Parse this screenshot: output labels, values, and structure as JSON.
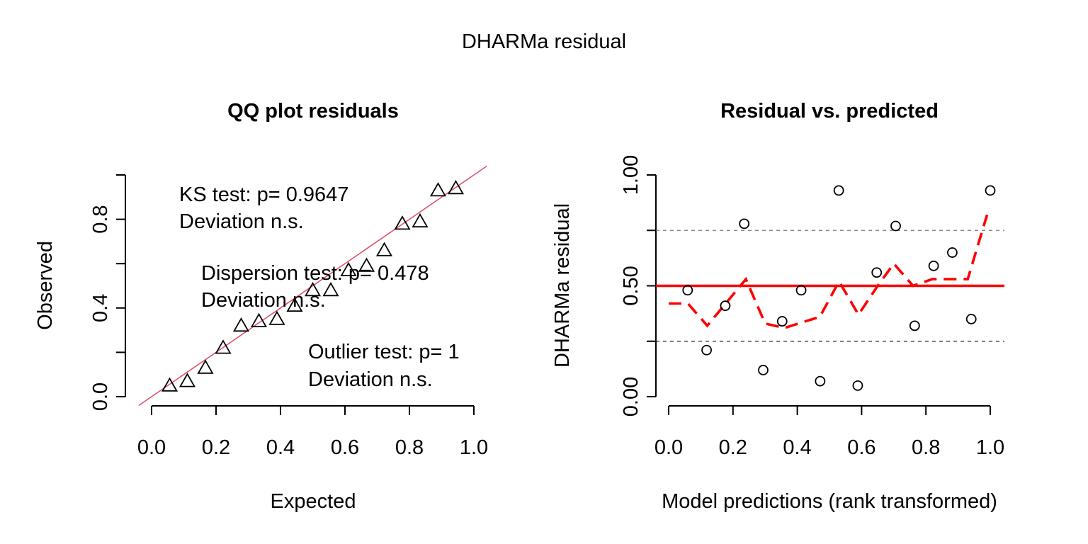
{
  "figure_title": "DHARMa residual",
  "colors": {
    "ref_line": "#DF536B",
    "quantile": "#FF0000",
    "marker": "#000000",
    "guide": "#777777"
  },
  "chart_data": [
    {
      "type": "scatter",
      "title": "QQ plot residuals",
      "xlabel": "Expected",
      "ylabel": "Observed",
      "xlim": [
        0.0,
        1.0
      ],
      "ylim": [
        0.0,
        1.0
      ],
      "xticks": [
        "0.0",
        "0.2",
        "0.4",
        "0.6",
        "0.8",
        "1.0"
      ],
      "yticks": [
        "0.0",
        "0.4",
        "0.8"
      ],
      "marker": "triangle",
      "x": [
        0.056,
        0.111,
        0.167,
        0.222,
        0.278,
        0.333,
        0.389,
        0.444,
        0.5,
        0.556,
        0.611,
        0.667,
        0.722,
        0.778,
        0.833,
        0.889,
        0.944
      ],
      "y": [
        0.05,
        0.07,
        0.13,
        0.22,
        0.32,
        0.34,
        0.35,
        0.41,
        0.48,
        0.48,
        0.57,
        0.59,
        0.66,
        0.78,
        0.79,
        0.93,
        0.94
      ],
      "reference_line": {
        "slope": 1,
        "intercept": 0
      },
      "annotations": [
        {
          "lines": [
            "KS test: p= 0.9647",
            "Deviation  n.s."
          ]
        },
        {
          "lines": [
            "Dispersion test: p= 0.478",
            "Deviation  n.s."
          ]
        },
        {
          "lines": [
            "Outlier test: p= 1",
            "Deviation  n.s."
          ]
        }
      ]
    },
    {
      "type": "scatter",
      "title": "Residual vs. predicted",
      "xlabel": "Model predictions (rank transformed)",
      "ylabel": "DHARMa residual",
      "xlim": [
        0.0,
        1.0
      ],
      "ylim": [
        0.0,
        1.0
      ],
      "xticks": [
        "0.0",
        "0.2",
        "0.4",
        "0.6",
        "0.8",
        "1.0"
      ],
      "yticks": [
        "0.00",
        "0.50",
        "1.00"
      ],
      "marker": "circle",
      "x": [
        0.059,
        0.118,
        0.176,
        0.235,
        0.294,
        0.353,
        0.412,
        0.471,
        0.529,
        0.588,
        0.647,
        0.706,
        0.765,
        0.824,
        0.882,
        0.941,
        1.0
      ],
      "y": [
        0.48,
        0.21,
        0.41,
        0.78,
        0.12,
        0.34,
        0.48,
        0.07,
        0.93,
        0.05,
        0.56,
        0.77,
        0.32,
        0.59,
        0.65,
        0.35,
        0.93
      ],
      "hlines": [
        {
          "y": 0.25,
          "style": "dashed"
        },
        {
          "y": 0.5,
          "style": "solid"
        },
        {
          "y": 0.75,
          "style": "dashed"
        }
      ],
      "quantile_curve": {
        "x": [
          0.0,
          0.06,
          0.12,
          0.24,
          0.3,
          0.36,
          0.47,
          0.53,
          0.59,
          0.65,
          0.7,
          0.76,
          0.82,
          0.93,
          0.99
        ],
        "y": [
          0.42,
          0.42,
          0.32,
          0.53,
          0.33,
          0.31,
          0.36,
          0.52,
          0.37,
          0.5,
          0.6,
          0.5,
          0.53,
          0.53,
          0.82
        ]
      }
    }
  ]
}
